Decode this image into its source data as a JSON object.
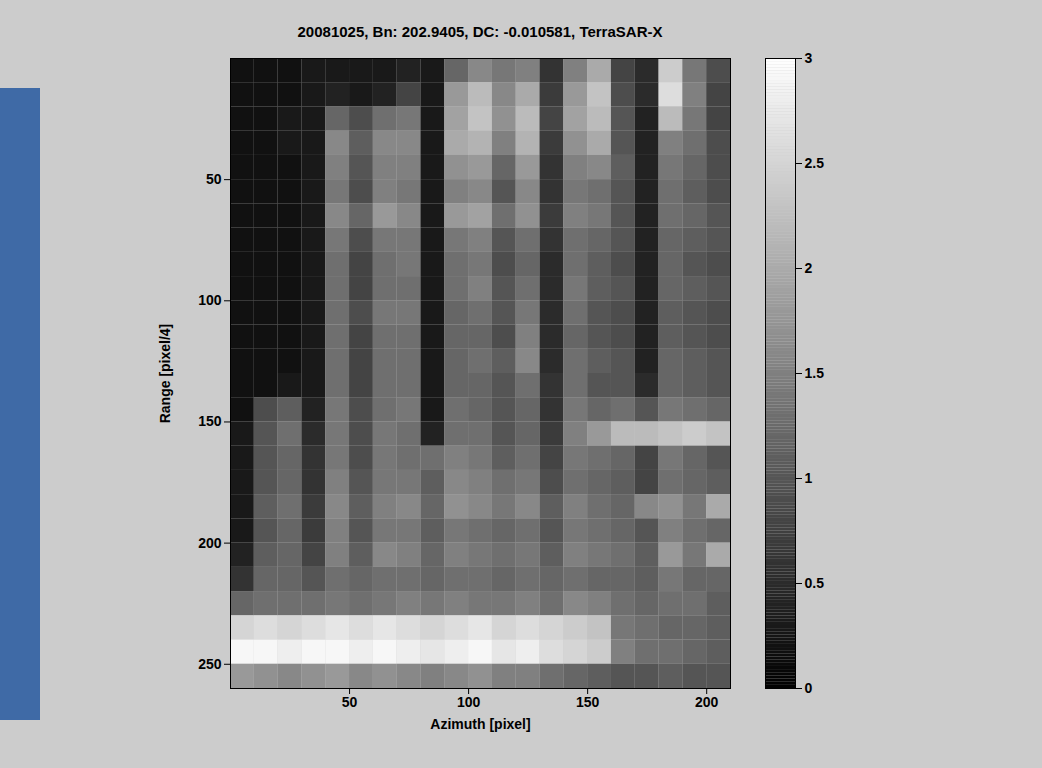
{
  "chart_data": {
    "type": "heatmap",
    "title": "20081025, Bn: 202.9405, DC: -0.010581, TerraSAR-X",
    "xlabel": "Azimuth [pixel]",
    "ylabel": "Range [pixel/4]",
    "xlim": [
      0,
      210
    ],
    "ylim": [
      0,
      260
    ],
    "xticks": [
      50,
      100,
      150,
      200
    ],
    "yticks": [
      50,
      100,
      150,
      200,
      250
    ],
    "x": [
      5,
      15,
      25,
      35,
      45,
      55,
      65,
      75,
      85,
      95,
      105,
      115,
      125,
      135,
      145,
      155,
      165,
      175,
      185,
      195,
      205
    ],
    "y": [
      5,
      15,
      25,
      35,
      45,
      55,
      65,
      75,
      85,
      95,
      105,
      115,
      125,
      135,
      145,
      155,
      165,
      175,
      185,
      195,
      205,
      215,
      225,
      235,
      245,
      255
    ],
    "values": [
      [
        0.2,
        0.2,
        0.2,
        0.3,
        0.3,
        0.3,
        0.3,
        0.4,
        0.3,
        1.2,
        1.6,
        1.4,
        1.5,
        0.6,
        1.5,
        2.0,
        0.8,
        0.5,
        2.4,
        1.4,
        0.9
      ],
      [
        0.2,
        0.2,
        0.2,
        0.3,
        0.4,
        0.3,
        0.4,
        0.8,
        0.3,
        1.8,
        2.2,
        1.6,
        2.0,
        0.7,
        1.8,
        2.3,
        0.9,
        0.5,
        2.6,
        1.5,
        0.8
      ],
      [
        0.2,
        0.2,
        0.3,
        0.3,
        1.2,
        0.9,
        1.3,
        1.4,
        0.3,
        1.9,
        2.3,
        1.7,
        2.2,
        0.8,
        1.9,
        2.2,
        1.0,
        0.4,
        2.2,
        1.4,
        0.8
      ],
      [
        0.2,
        0.2,
        0.3,
        0.3,
        1.6,
        1.1,
        1.6,
        1.6,
        0.3,
        2.0,
        2.1,
        1.5,
        2.1,
        0.7,
        1.7,
        2.0,
        1.0,
        0.4,
        1.5,
        1.3,
        0.9
      ],
      [
        0.2,
        0.2,
        0.2,
        0.3,
        1.5,
        1.0,
        1.5,
        1.5,
        0.3,
        1.7,
        1.8,
        1.2,
        1.8,
        0.6,
        1.5,
        1.6,
        1.1,
        0.4,
        1.4,
        1.2,
        0.9
      ],
      [
        0.2,
        0.2,
        0.2,
        0.3,
        1.4,
        0.9,
        1.5,
        1.4,
        0.3,
        1.5,
        1.6,
        1.0,
        1.6,
        0.6,
        1.4,
        1.3,
        1.0,
        0.4,
        1.3,
        1.1,
        0.9
      ],
      [
        0.2,
        0.2,
        0.2,
        0.3,
        1.6,
        1.2,
        1.8,
        1.6,
        0.3,
        1.8,
        1.9,
        1.3,
        1.7,
        0.7,
        1.5,
        1.4,
        1.0,
        0.4,
        1.3,
        1.2,
        1.0
      ],
      [
        0.2,
        0.2,
        0.2,
        0.3,
        1.4,
        0.9,
        1.4,
        1.4,
        0.3,
        1.4,
        1.5,
        1.0,
        1.3,
        0.6,
        1.3,
        1.2,
        1.0,
        0.4,
        1.2,
        1.1,
        1.0
      ],
      [
        0.2,
        0.2,
        0.2,
        0.3,
        1.3,
        0.8,
        1.3,
        1.4,
        0.3,
        1.3,
        1.4,
        0.9,
        1.2,
        0.5,
        1.3,
        1.1,
        0.9,
        0.4,
        1.2,
        1.0,
        0.9
      ],
      [
        0.2,
        0.2,
        0.2,
        0.3,
        1.3,
        0.8,
        1.3,
        1.3,
        0.3,
        1.3,
        1.5,
        1.0,
        1.3,
        0.5,
        1.4,
        1.1,
        1.0,
        0.4,
        1.2,
        1.1,
        1.0
      ],
      [
        0.2,
        0.2,
        0.2,
        0.3,
        1.3,
        0.9,
        1.4,
        1.4,
        0.3,
        1.2,
        1.3,
        1.0,
        1.4,
        0.5,
        1.3,
        1.0,
        0.9,
        0.4,
        1.1,
        1.0,
        0.9
      ],
      [
        0.2,
        0.2,
        0.2,
        0.3,
        1.3,
        0.8,
        1.3,
        1.3,
        0.3,
        1.2,
        1.2,
        0.9,
        1.5,
        0.5,
        1.2,
        1.0,
        0.9,
        0.4,
        1.1,
        1.0,
        0.9
      ],
      [
        0.2,
        0.2,
        0.2,
        0.3,
        1.3,
        0.8,
        1.3,
        1.3,
        0.3,
        1.2,
        1.3,
        1.1,
        1.6,
        0.5,
        1.3,
        1.1,
        1.0,
        0.4,
        1.2,
        1.1,
        1.0
      ],
      [
        0.2,
        0.2,
        0.3,
        0.3,
        1.3,
        0.8,
        1.3,
        1.3,
        0.3,
        1.2,
        1.2,
        1.0,
        1.3,
        0.6,
        1.3,
        1.0,
        1.0,
        0.5,
        1.2,
        1.1,
        1.0
      ],
      [
        0.2,
        0.9,
        1.1,
        0.4,
        1.4,
        0.9,
        1.3,
        1.4,
        0.3,
        1.3,
        1.2,
        1.0,
        1.2,
        0.6,
        1.4,
        1.2,
        1.3,
        1.0,
        1.4,
        1.3,
        1.2
      ],
      [
        0.3,
        1.0,
        1.3,
        0.5,
        1.4,
        0.9,
        1.4,
        1.3,
        0.4,
        1.3,
        1.3,
        1.0,
        1.2,
        0.7,
        1.5,
        1.8,
        2.2,
        2.2,
        2.3,
        2.4,
        2.3
      ],
      [
        0.3,
        1.0,
        1.2,
        0.6,
        1.4,
        0.9,
        1.4,
        1.3,
        1.3,
        1.5,
        1.4,
        1.1,
        1.3,
        0.8,
        1.4,
        1.3,
        1.2,
        0.8,
        1.4,
        1.2,
        1.0
      ],
      [
        0.3,
        1.0,
        1.2,
        0.6,
        1.5,
        1.0,
        1.4,
        1.4,
        1.1,
        1.6,
        1.5,
        1.3,
        1.4,
        0.9,
        1.3,
        1.2,
        1.1,
        0.8,
        1.3,
        1.2,
        1.1
      ],
      [
        0.3,
        1.1,
        1.3,
        0.7,
        1.6,
        1.1,
        1.5,
        1.6,
        1.2,
        1.7,
        1.6,
        1.4,
        1.6,
        1.1,
        1.5,
        1.3,
        1.2,
        1.6,
        1.7,
        1.4,
        2.0
      ],
      [
        0.3,
        1.0,
        1.2,
        0.7,
        1.5,
        1.0,
        1.4,
        1.4,
        1.1,
        1.4,
        1.3,
        1.2,
        1.3,
        1.0,
        1.4,
        1.3,
        1.2,
        1.0,
        1.5,
        1.3,
        1.2
      ],
      [
        0.4,
        1.1,
        1.2,
        0.8,
        1.5,
        1.1,
        1.6,
        1.5,
        1.2,
        1.5,
        1.4,
        1.3,
        1.4,
        1.1,
        1.5,
        1.4,
        1.3,
        1.1,
        1.8,
        1.4,
        2.0
      ],
      [
        0.6,
        1.2,
        1.2,
        1.0,
        1.3,
        1.2,
        1.3,
        1.3,
        1.2,
        1.3,
        1.3,
        1.2,
        1.3,
        1.2,
        1.3,
        1.2,
        1.2,
        1.1,
        1.4,
        1.2,
        1.2
      ],
      [
        1.2,
        1.3,
        1.3,
        1.3,
        1.4,
        1.3,
        1.4,
        1.5,
        1.4,
        1.5,
        1.4,
        1.4,
        1.5,
        1.3,
        1.6,
        1.5,
        1.3,
        1.2,
        1.3,
        1.3,
        1.1
      ],
      [
        2.5,
        2.6,
        2.5,
        2.6,
        2.7,
        2.6,
        2.7,
        2.6,
        2.5,
        2.6,
        2.7,
        2.5,
        2.6,
        2.5,
        2.4,
        2.3,
        1.4,
        1.3,
        1.2,
        1.2,
        1.1
      ],
      [
        2.9,
        2.9,
        2.8,
        2.9,
        2.9,
        2.8,
        2.9,
        2.8,
        2.7,
        2.8,
        2.9,
        2.7,
        2.8,
        2.6,
        2.5,
        2.4,
        1.5,
        1.3,
        1.3,
        1.2,
        1.1
      ],
      [
        1.8,
        1.7,
        1.6,
        1.7,
        1.8,
        1.6,
        1.7,
        1.6,
        1.5,
        1.6,
        1.7,
        1.5,
        1.5,
        1.3,
        1.2,
        1.1,
        1.0,
        1.0,
        1.1,
        1.0,
        1.0
      ]
    ],
    "colorbar": {
      "range": [
        0,
        3
      ],
      "ticks": [
        0,
        0.5,
        1,
        1.5,
        2,
        2.5,
        3
      ]
    }
  }
}
